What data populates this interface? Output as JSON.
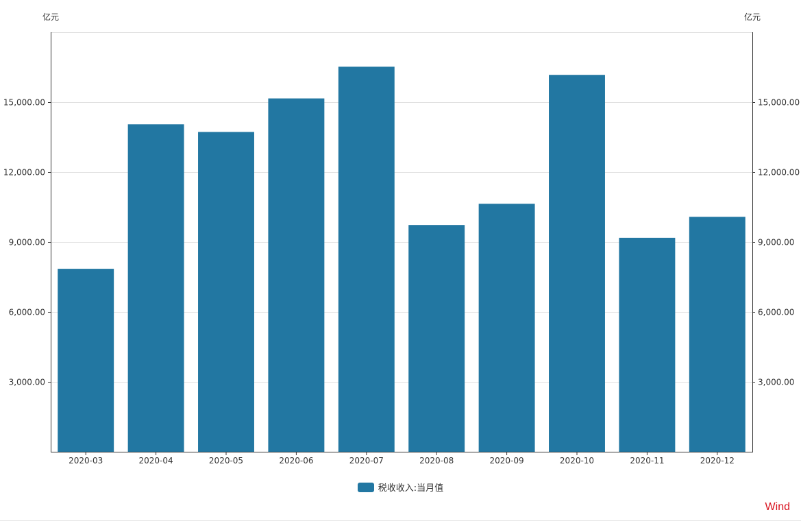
{
  "chart_data": {
    "type": "bar",
    "categories": [
      "2020-03",
      "2020-04",
      "2020-05",
      "2020-06",
      "2020-07",
      "2020-08",
      "2020-09",
      "2020-10",
      "2020-11",
      "2020-12"
    ],
    "series": [
      {
        "name": "税收收入:当月值",
        "values": [
          7850,
          14050,
          13720,
          15160,
          16520,
          9730,
          10640,
          16170,
          9180,
          10080
        ],
        "color": "#2277a2"
      }
    ],
    "y_unit_left": "亿元",
    "y_unit_right": "亿元",
    "ylim": [
      0,
      18000
    ],
    "yticks": [
      3000,
      6000,
      9000,
      12000,
      15000
    ],
    "ytick_labels": [
      "3,000.00",
      "6,000.00",
      "9,000.00",
      "12,000.00",
      "15,000.00"
    ],
    "grid": true,
    "legend_position": "bottom-center"
  },
  "watermark": {
    "text": "Wind",
    "color": "#d9121e"
  }
}
